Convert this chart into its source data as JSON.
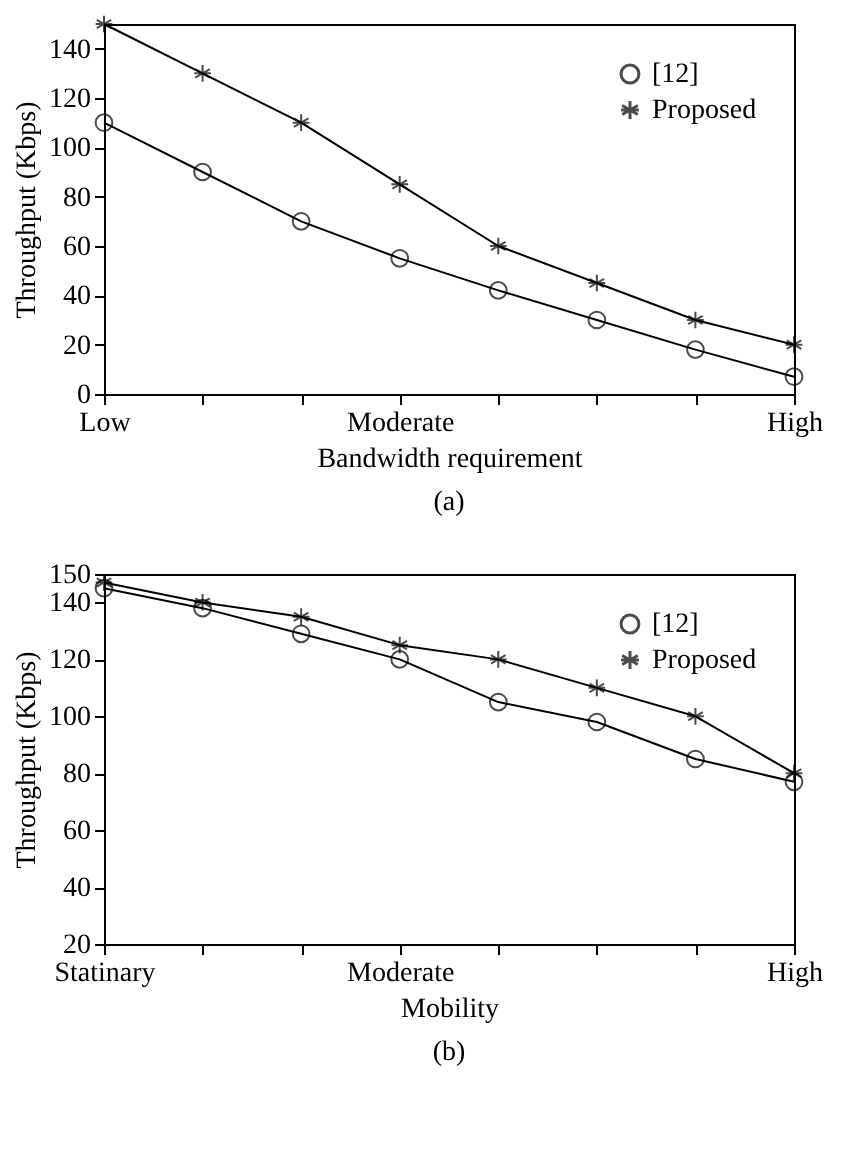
{
  "chart_data": [
    {
      "type": "line",
      "xlabel": "Bandwidth requirement",
      "ylabel": "Throughput (Kbps)",
      "annotations": [
        "(a)"
      ],
      "categories": [
        "Low",
        null,
        null,
        "Moderate",
        null,
        null,
        null,
        "High"
      ],
      "ylim": [
        0,
        150
      ],
      "yticks": [
        0,
        20,
        40,
        60,
        80,
        100,
        120,
        140
      ],
      "legend": "top right",
      "grid": false,
      "line_style": "solid",
      "series": [
        {
          "name": "[12]",
          "color": "#000000",
          "marker": "circle",
          "values": [
            110,
            90,
            70,
            55,
            42,
            30,
            18,
            7
          ]
        },
        {
          "name": "Proposed",
          "color": "#000000",
          "marker": "cross",
          "values": [
            150,
            130,
            110,
            85,
            60,
            45,
            30,
            20
          ]
        }
      ]
    },
    {
      "type": "line",
      "xlabel": "Mobility",
      "ylabel": "Throughput (Kbps)",
      "annotations": [
        "(b)"
      ],
      "categories": [
        "Statinary",
        null,
        null,
        "Moderate",
        null,
        null,
        null,
        "High"
      ],
      "ylim": [
        20,
        150
      ],
      "yticks": [
        20,
        40,
        60,
        80,
        100,
        120,
        140,
        150
      ],
      "legend": "top right",
      "grid": false,
      "line_style": "solid",
      "series": [
        {
          "name": "[12]",
          "color": "#000000",
          "marker": "circle",
          "values": [
            145,
            138,
            129,
            120,
            105,
            98,
            85,
            77
          ]
        },
        {
          "name": "Proposed",
          "color": "#000000",
          "marker": "cross",
          "values": [
            147,
            140,
            135,
            125,
            120,
            110,
            100,
            80
          ]
        }
      ]
    }
  ]
}
